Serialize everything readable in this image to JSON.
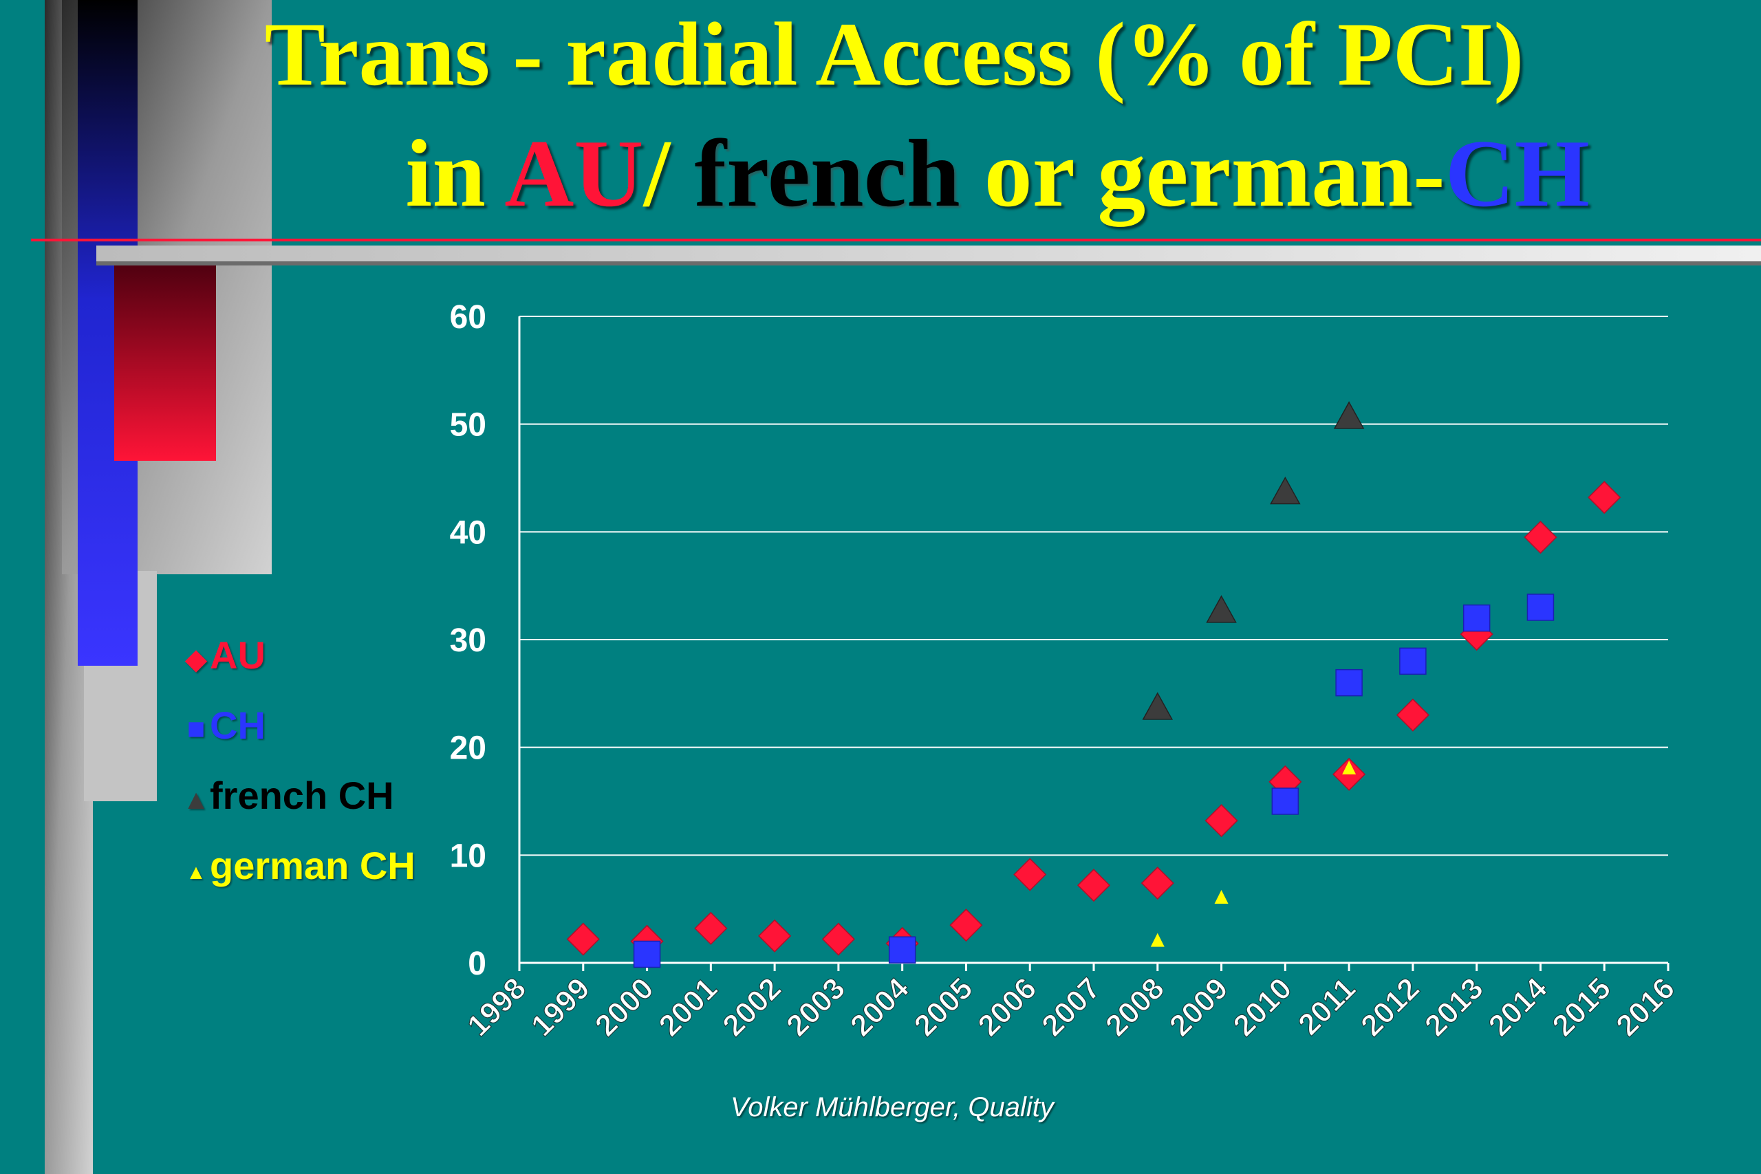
{
  "title": {
    "line1": "Trans - radial Access (% of  PCI)",
    "line2_parts": [
      {
        "text": "in ",
        "color": "#ffff00"
      },
      {
        "text": "AU",
        "color": "#ff1437"
      },
      {
        "text": "/ ",
        "color": "#ffff00"
      },
      {
        "text": "french",
        "color": "#000000"
      },
      {
        "text": " or german-",
        "color": "#ffff00"
      },
      {
        "text": "CH",
        "color": "#2a35ff"
      }
    ]
  },
  "credit": "Volker Mühlberger, Quality",
  "legend": [
    {
      "label": "AU",
      "marker": "diamond",
      "color": "#ff1437"
    },
    {
      "label": "CH",
      "marker": "square",
      "color": "#2a35ff"
    },
    {
      "label": "french CH",
      "marker": "triangle",
      "color": "#3c3c3c"
    },
    {
      "label": "german CH",
      "marker": "triangle-small",
      "color": "#ffff00"
    }
  ],
  "chart_data": {
    "type": "scatter",
    "title": "Trans - radial Access (% of  PCI) in AU/ french or german-CH",
    "xlabel": "",
    "ylabel": "",
    "xlim": [
      1998,
      2016
    ],
    "ylim": [
      0,
      60
    ],
    "x_ticks": [
      1998,
      1999,
      2000,
      2001,
      2002,
      2003,
      2004,
      2005,
      2006,
      2007,
      2008,
      2009,
      2010,
      2011,
      2012,
      2013,
      2014,
      2015,
      2016
    ],
    "y_ticks": [
      0,
      10,
      20,
      30,
      40,
      50,
      60
    ],
    "grid": "horizontal",
    "legend_position": "left",
    "series": [
      {
        "name": "AU",
        "marker": "diamond",
        "color": "#ff1437",
        "points": [
          [
            1999,
            2.2
          ],
          [
            2000,
            2.0
          ],
          [
            2001,
            3.2
          ],
          [
            2002,
            2.5
          ],
          [
            2003,
            2.2
          ],
          [
            2004,
            1.8
          ],
          [
            2005,
            3.5
          ],
          [
            2006,
            8.2
          ],
          [
            2007,
            7.2
          ],
          [
            2008,
            7.4
          ],
          [
            2009,
            13.2
          ],
          [
            2010,
            16.8
          ],
          [
            2011,
            17.5
          ],
          [
            2012,
            23
          ],
          [
            2013,
            30.5
          ],
          [
            2014,
            39.5
          ],
          [
            2015,
            43.2
          ]
        ]
      },
      {
        "name": "CH",
        "marker": "square",
        "color": "#2a35ff",
        "points": [
          [
            2000,
            0.8
          ],
          [
            2004,
            1.2
          ],
          [
            2010,
            15
          ],
          [
            2011,
            26
          ],
          [
            2012,
            28
          ],
          [
            2013,
            32
          ],
          [
            2014,
            33
          ]
        ]
      },
      {
        "name": "french CH",
        "marker": "triangle",
        "color": "#3c3c3c",
        "points": [
          [
            2008,
            23.5
          ],
          [
            2009,
            32.5
          ],
          [
            2010,
            43.5
          ],
          [
            2011,
            50.5
          ]
        ]
      },
      {
        "name": "german CH",
        "marker": "triangle-small",
        "color": "#ffff00",
        "points": [
          [
            2008,
            2
          ],
          [
            2009,
            6
          ],
          [
            2011,
            18
          ]
        ]
      }
    ]
  }
}
